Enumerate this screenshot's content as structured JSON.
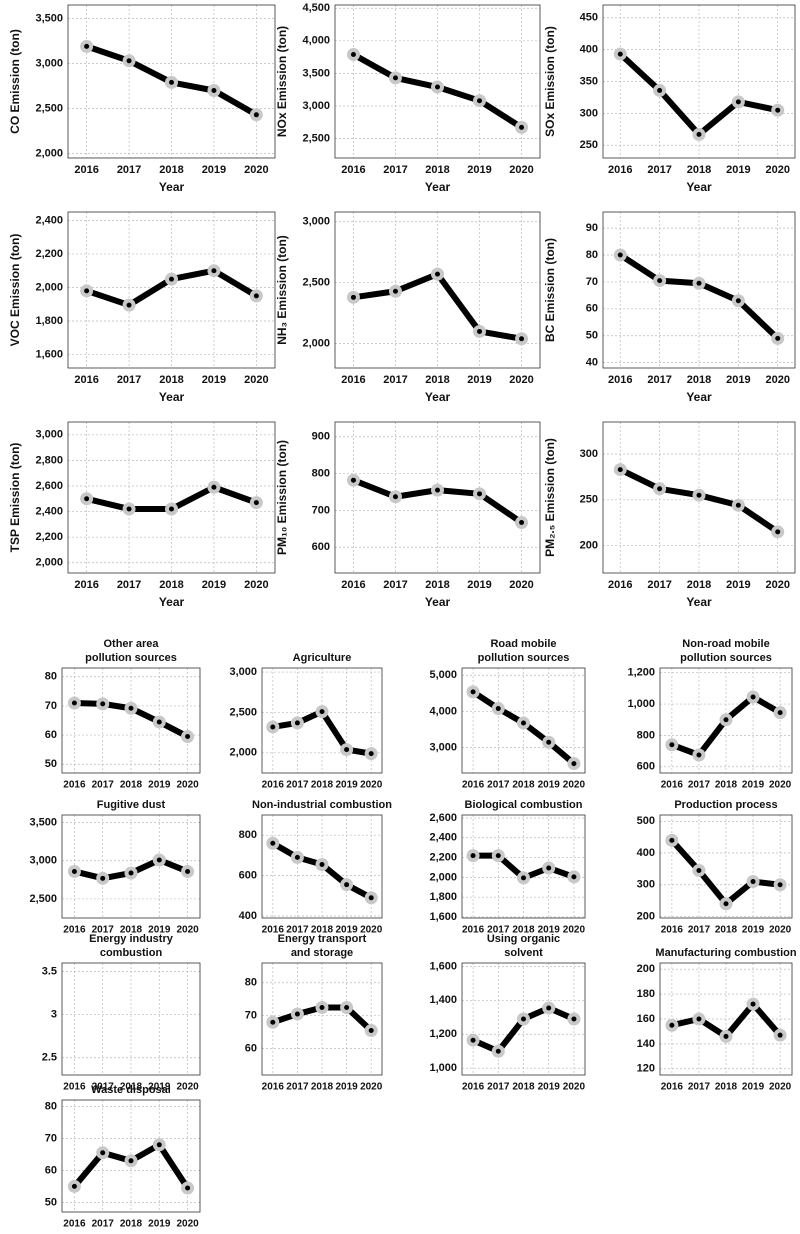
{
  "chart_data": [
    {
      "type": "line",
      "ylabel": "CO Emission (ton)",
      "xlabel": "Year",
      "categories": [
        "2016",
        "2017",
        "2018",
        "2019",
        "2020"
      ],
      "values": [
        3190,
        3030,
        2790,
        2700,
        2430
      ],
      "ylim": [
        1950,
        3650
      ],
      "yticks": [
        {
          "value": 2000,
          "label": "2,000"
        },
        {
          "value": 2500,
          "label": "2,500"
        },
        {
          "value": 3000,
          "label": "3,000"
        },
        {
          "value": 3500,
          "label": "3,500"
        }
      ],
      "color": "#000000",
      "marker_color": "#c8c8c8",
      "grid": true
    },
    {
      "type": "line",
      "ylabel": "NOx Emission (ton)",
      "xlabel": "Year",
      "categories": [
        "2016",
        "2017",
        "2018",
        "2019",
        "2020"
      ],
      "values": [
        3790,
        3430,
        3290,
        3080,
        2670
      ],
      "ylim": [
        2200,
        4550
      ],
      "yticks": [
        {
          "value": 2500,
          "label": "2,500"
        },
        {
          "value": 3000,
          "label": "3,000"
        },
        {
          "value": 3500,
          "label": "3,500"
        },
        {
          "value": 4000,
          "label": "4,000"
        },
        {
          "value": 4500,
          "label": "4,500"
        }
      ],
      "color": "#000000",
      "marker_color": "#c8c8c8",
      "grid": true
    },
    {
      "type": "line",
      "ylabel": "SOx Emission (ton)",
      "xlabel": "Year",
      "categories": [
        "2016",
        "2017",
        "2018",
        "2019",
        "2020"
      ],
      "values": [
        393,
        336,
        267,
        318,
        305
      ],
      "ylim": [
        230,
        470
      ],
      "yticks": [
        250,
        300,
        350,
        400,
        450
      ],
      "color": "#000000",
      "marker_color": "#c8c8c8",
      "grid": true
    },
    {
      "type": "line",
      "ylabel": "VOC Emission (ton)",
      "xlabel": "Year",
      "categories": [
        "2016",
        "2017",
        "2018",
        "2019",
        "2020"
      ],
      "values": [
        1980,
        1895,
        2050,
        2100,
        1950
      ],
      "ylim": [
        1520,
        2450
      ],
      "yticks": [
        {
          "value": 1600,
          "label": "1,600"
        },
        {
          "value": 1800,
          "label": "1,800"
        },
        {
          "value": 2000,
          "label": "2,000"
        },
        {
          "value": 2200,
          "label": "2,200"
        },
        {
          "value": 2400,
          "label": "2,400"
        }
      ],
      "color": "#000000",
      "marker_color": "#c8c8c8",
      "grid": true
    },
    {
      "type": "line",
      "ylabel": "NH₃ Emission (ton)",
      "xlabel": "Year",
      "categories": [
        "2016",
        "2017",
        "2018",
        "2019",
        "2020"
      ],
      "values": [
        2380,
        2430,
        2570,
        2100,
        2040
      ],
      "ylim": [
        1800,
        3080
      ],
      "yticks": [
        {
          "value": 2000,
          "label": "2,000"
        },
        {
          "value": 2500,
          "label": "2,500"
        },
        {
          "value": 3000,
          "label": "3,000"
        }
      ],
      "color": "#000000",
      "marker_color": "#c8c8c8",
      "grid": true
    },
    {
      "type": "line",
      "ylabel": "BC Emission (ton)",
      "xlabel": "Year",
      "categories": [
        "2016",
        "2017",
        "2018",
        "2019",
        "2020"
      ],
      "values": [
        80,
        70.5,
        69.5,
        63,
        49
      ],
      "ylim": [
        38,
        96
      ],
      "yticks": [
        40,
        50,
        60,
        70,
        80,
        90
      ],
      "color": "#000000",
      "marker_color": "#c8c8c8",
      "grid": true
    },
    {
      "type": "line",
      "ylabel": "TSP Emission (ton)",
      "xlabel": "Year",
      "categories": [
        "2016",
        "2017",
        "2018",
        "2019",
        "2020"
      ],
      "values": [
        2500,
        2420,
        2420,
        2590,
        2470
      ],
      "ylim": [
        1920,
        3100
      ],
      "yticks": [
        {
          "value": 2000,
          "label": "2,000"
        },
        {
          "value": 2200,
          "label": "2,200"
        },
        {
          "value": 2400,
          "label": "2,400"
        },
        {
          "value": 2600,
          "label": "2,600"
        },
        {
          "value": 2800,
          "label": "2,800"
        },
        {
          "value": 3000,
          "label": "3,000"
        }
      ],
      "color": "#000000",
      "marker_color": "#c8c8c8",
      "grid": true
    },
    {
      "type": "line",
      "ylabel": "PM₁₀ Emission (ton)",
      "xlabel": "Year",
      "categories": [
        "2016",
        "2017",
        "2018",
        "2019",
        "2020"
      ],
      "values": [
        782,
        737,
        755,
        745,
        667
      ],
      "ylim": [
        530,
        940
      ],
      "yticks": [
        600,
        700,
        800,
        900
      ],
      "color": "#000000",
      "marker_color": "#c8c8c8",
      "grid": true
    },
    {
      "type": "line",
      "ylabel": "PM₂.₅ Emission (ton)",
      "xlabel": "Year",
      "categories": [
        "2016",
        "2017",
        "2018",
        "2019",
        "2020"
      ],
      "values": [
        283,
        262,
        255,
        244,
        215
      ],
      "ylim": [
        170,
        335
      ],
      "yticks": [
        200,
        250,
        300
      ],
      "color": "#000000",
      "marker_color": "#c8c8c8",
      "grid": true
    },
    {
      "type": "line",
      "title": [
        "Other area",
        "pollution sources"
      ],
      "categories": [
        "2016",
        "2017",
        "2018",
        "2019",
        "2020"
      ],
      "values": [
        71,
        70.7,
        69.2,
        64.5,
        59.5
      ],
      "ylim": [
        47,
        83
      ],
      "yticks": [
        50,
        60,
        70,
        80
      ],
      "color": "#000000",
      "marker_color": "#c8c8c8",
      "grid": true
    },
    {
      "type": "line",
      "title": [
        "Agriculture"
      ],
      "categories": [
        "2016",
        "2017",
        "2018",
        "2019",
        "2020"
      ],
      "values": [
        2320,
        2370,
        2510,
        2040,
        1990
      ],
      "ylim": [
        1750,
        3050
      ],
      "yticks": [
        {
          "value": 2000,
          "label": "2,000"
        },
        {
          "value": 2500,
          "label": "2,500"
        },
        {
          "value": 3000,
          "label": "3,000"
        }
      ],
      "color": "#000000",
      "marker_color": "#c8c8c8",
      "grid": true
    },
    {
      "type": "line",
      "title": [
        "Road mobile",
        "pollution sources"
      ],
      "categories": [
        "2016",
        "2017",
        "2018",
        "2019",
        "2020"
      ],
      "values": [
        4540,
        4080,
        3680,
        3150,
        2560
      ],
      "ylim": [
        2300,
        5200
      ],
      "yticks": [
        {
          "value": 3000,
          "label": "3,000"
        },
        {
          "value": 4000,
          "label": "4,000"
        },
        {
          "value": 5000,
          "label": "5,000"
        }
      ],
      "color": "#000000",
      "marker_color": "#c8c8c8",
      "grid": true
    },
    {
      "type": "line",
      "title": [
        "Non-road mobile",
        "pollution sources"
      ],
      "categories": [
        "2016",
        "2017",
        "2018",
        "2019",
        "2020"
      ],
      "values": [
        740,
        675,
        900,
        1045,
        945
      ],
      "ylim": [
        560,
        1230
      ],
      "yticks": [
        600,
        800,
        {
          "value": 1000,
          "label": "1,000"
        },
        {
          "value": 1200,
          "label": "1,200"
        }
      ],
      "color": "#000000",
      "marker_color": "#c8c8c8",
      "grid": true
    },
    {
      "type": "line",
      "title": [
        "Fugitive dust"
      ],
      "categories": [
        "2016",
        "2017",
        "2018",
        "2019",
        "2020"
      ],
      "values": [
        2860,
        2770,
        2840,
        3010,
        2860
      ],
      "ylim": [
        2250,
        3600
      ],
      "yticks": [
        {
          "value": 2500,
          "label": "2,500"
        },
        {
          "value": 3000,
          "label": "3,000"
        },
        {
          "value": 3500,
          "label": "3,500"
        }
      ],
      "color": "#000000",
      "marker_color": "#c8c8c8",
      "grid": true
    },
    {
      "type": "line",
      "title": [
        "Non-industrial combustion"
      ],
      "categories": [
        "2016",
        "2017",
        "2018",
        "2019",
        "2020"
      ],
      "values": [
        760,
        690,
        655,
        555,
        490
      ],
      "ylim": [
        390,
        900
      ],
      "yticks": [
        400,
        600,
        800
      ],
      "color": "#000000",
      "marker_color": "#c8c8c8",
      "grid": true
    },
    {
      "type": "line",
      "title": [
        "Biological combustion"
      ],
      "categories": [
        "2016",
        "2017",
        "2018",
        "2019",
        "2020"
      ],
      "values": [
        2220,
        2220,
        1995,
        2095,
        2005
      ],
      "ylim": [
        1590,
        2630
      ],
      "yticks": [
        {
          "value": 1600,
          "label": "1,600"
        },
        {
          "value": 1800,
          "label": "1,800"
        },
        {
          "value": 2000,
          "label": "2,000"
        },
        {
          "value": 2200,
          "label": "2,200"
        },
        {
          "value": 2400,
          "label": "2,400"
        },
        {
          "value": 2600,
          "label": "2,600"
        }
      ],
      "color": "#000000",
      "marker_color": "#c8c8c8",
      "grid": true
    },
    {
      "type": "line",
      "title": [
        "Production process"
      ],
      "categories": [
        "2016",
        "2017",
        "2018",
        "2019",
        "2020"
      ],
      "values": [
        440,
        345,
        240,
        310,
        300
      ],
      "ylim": [
        195,
        520
      ],
      "yticks": [
        200,
        300,
        400,
        500
      ],
      "color": "#000000",
      "marker_color": "#c8c8c8",
      "grid": true
    },
    {
      "type": "line",
      "title": [
        "Energy industry",
        "combustion"
      ],
      "categories": [
        "2016",
        "2017",
        "2018",
        "2019",
        "2020"
      ],
      "values": [
        null,
        null,
        null,
        null,
        null
      ],
      "ylim": [
        2.3,
        3.6
      ],
      "yticks": [
        2.5,
        3,
        3.5
      ],
      "color": "#000000",
      "marker_color": "#c8c8c8",
      "grid": true
    },
    {
      "type": "line",
      "title": [
        "Energy transport",
        "and storage"
      ],
      "categories": [
        "2016",
        "2017",
        "2018",
        "2019",
        "2020"
      ],
      "values": [
        68,
        70.5,
        72.5,
        72.5,
        65.5
      ],
      "ylim": [
        52,
        86
      ],
      "yticks": [
        60,
        70,
        80
      ],
      "color": "#000000",
      "marker_color": "#c8c8c8",
      "grid": true
    },
    {
      "type": "line",
      "title": [
        "Using organic",
        "solvent"
      ],
      "categories": [
        "2016",
        "2017",
        "2018",
        "2019",
        "2020"
      ],
      "values": [
        1165,
        1100,
        1290,
        1355,
        1290
      ],
      "ylim": [
        960,
        1620
      ],
      "yticks": [
        {
          "value": 1000,
          "label": "1,000"
        },
        {
          "value": 1200,
          "label": "1,200"
        },
        {
          "value": 1400,
          "label": "1,400"
        },
        {
          "value": 1600,
          "label": "1,600"
        }
      ],
      "color": "#000000",
      "marker_color": "#c8c8c8",
      "grid": true
    },
    {
      "type": "line",
      "title": [
        "Manufacturing combustion"
      ],
      "categories": [
        "2016",
        "2017",
        "2018",
        "2019",
        "2020"
      ],
      "values": [
        155,
        160,
        146,
        172,
        147
      ],
      "ylim": [
        115,
        205
      ],
      "yticks": [
        120,
        140,
        160,
        180,
        200
      ],
      "color": "#000000",
      "marker_color": "#c8c8c8",
      "grid": true
    },
    {
      "type": "line",
      "title": [
        "Waste disposal"
      ],
      "categories": [
        "2016",
        "2017",
        "2018",
        "2019",
        "2020"
      ],
      "values": [
        55,
        65.5,
        63,
        68,
        54.5
      ],
      "ylim": [
        47,
        82
      ],
      "yticks": [
        50,
        60,
        70,
        80
      ],
      "color": "#000000",
      "marker_color": "#c8c8c8",
      "grid": true
    }
  ]
}
